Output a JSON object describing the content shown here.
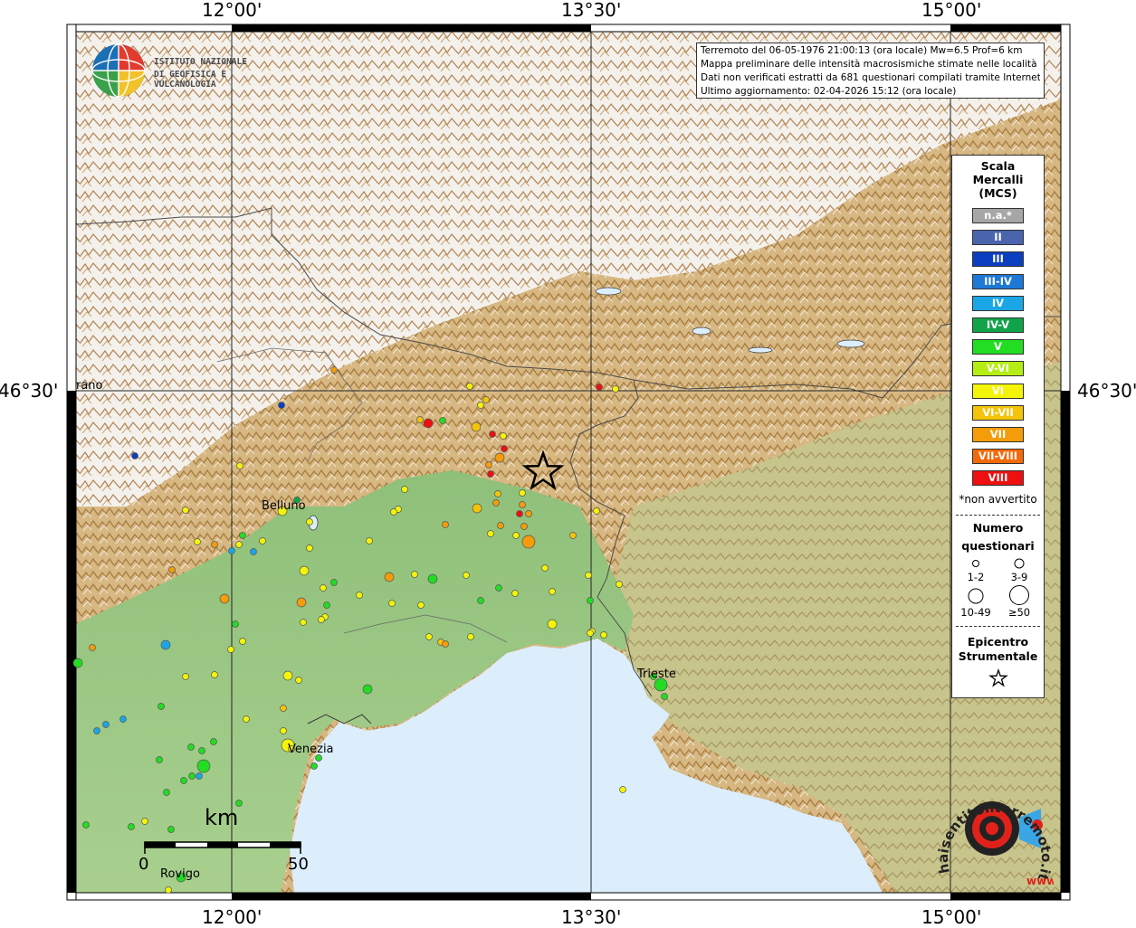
{
  "map": {
    "lon_labels": [
      "12°00'",
      "13°30'",
      "15°00'"
    ],
    "lat_label": "46°30'",
    "places": [
      "Belluno",
      "Trieste",
      "Venezia",
      "Rovigo",
      "rano"
    ],
    "scalebar": {
      "unit": "km",
      "min_label": "0",
      "max_label": "50"
    }
  },
  "info_box": {
    "lines": [
      "Terremoto del 06-05-1976 21:00:13 (ora locale) Mw=6.5 Prof=6 km",
      "Mappa preliminare delle intensità macrosismiche stimate nelle località",
      "Dati non verificati estratti da 681 questionari compilati tramite Internet.",
      "Ultimo aggiornamento: 02-04-2026 15:12 (ora locale)"
    ]
  },
  "logo": {
    "line1": "ISTITUTO NAZIONALE",
    "line2": "DI GEOFISICA E VULCANOLOGIA"
  },
  "legend": {
    "title": [
      "Scala",
      "Mercalli",
      "(MCS)"
    ],
    "classes": [
      {
        "label": "n.a.*",
        "color": "#a6a6a6"
      },
      {
        "label": "II",
        "color": "#4a65ad"
      },
      {
        "label": "III",
        "color": "#0c3fbf"
      },
      {
        "label": "III-IV",
        "color": "#1e78d6"
      },
      {
        "label": "IV",
        "color": "#1aa6e6"
      },
      {
        "label": "IV-V",
        "color": "#11a34a"
      },
      {
        "label": "V",
        "color": "#22dd22"
      },
      {
        "label": "V-VI",
        "color": "#b4ee14"
      },
      {
        "label": "VI",
        "color": "#f4f40a"
      },
      {
        "label": "VI-VII",
        "color": "#f4c40a"
      },
      {
        "label": "VII",
        "color": "#f49c0a"
      },
      {
        "label": "VII-VIII",
        "color": "#f46a0a"
      },
      {
        "label": "VIII",
        "color": "#ee1010"
      }
    ],
    "note": "*non avvertito",
    "count_title": [
      "Numero",
      "questionari"
    ],
    "count_labels": [
      "1-2",
      "3-9",
      "10-49",
      "≥50"
    ],
    "epicenter_title": [
      "Epicentro",
      "Strumentale"
    ]
  },
  "hse_logo": {
    "text": "haisentitoilterremoto.it",
    "sub": "www."
  },
  "observations": {
    "columns": [
      "x",
      "y",
      "size",
      "intensity"
    ],
    "rows": [
      [
        311,
        448,
        1,
        "III"
      ],
      [
        149,
        504,
        1,
        "III"
      ],
      [
        369,
        409,
        1,
        "VII"
      ],
      [
        519,
        427,
        1,
        "VI"
      ],
      [
        537,
        442,
        1,
        "VI-VII"
      ],
      [
        531,
        448,
        1,
        "VI"
      ],
      [
        464,
        464,
        1,
        "VI-VII"
      ],
      [
        473,
        468,
        2,
        "VIII"
      ],
      [
        489,
        465,
        1,
        "V"
      ],
      [
        526,
        472,
        2,
        "VI-VII"
      ],
      [
        544,
        480,
        1,
        "VIII"
      ],
      [
        556,
        482,
        1,
        "VI"
      ],
      [
        557,
        496,
        1,
        "VIII"
      ],
      [
        552,
        506,
        2,
        "VII"
      ],
      [
        540,
        514,
        1,
        "VII"
      ],
      [
        542,
        524,
        1,
        "VIII"
      ],
      [
        550,
        546,
        1,
        "VI-VII"
      ],
      [
        548,
        556,
        1,
        "VII"
      ],
      [
        527,
        562,
        2,
        "VI-VII"
      ],
      [
        577,
        545,
        1,
        "VI"
      ],
      [
        577,
        558,
        1,
        "VII"
      ],
      [
        574,
        568,
        1,
        "VIII"
      ],
      [
        584,
        568,
        1,
        "VII"
      ],
      [
        579,
        582,
        1,
        "VII"
      ],
      [
        584,
        599,
        3,
        "VII"
      ],
      [
        553,
        581,
        1,
        "VII"
      ],
      [
        570,
        592,
        1,
        "VI"
      ],
      [
        542,
        590,
        1,
        "VI"
      ],
      [
        492,
        580,
        1,
        "VII"
      ],
      [
        447,
        541,
        1,
        "VI"
      ],
      [
        440,
        563,
        1,
        "VI"
      ],
      [
        435,
        566,
        1,
        "VI"
      ],
      [
        662,
        428,
        1,
        "VIII"
      ],
      [
        680,
        430,
        1,
        "VI"
      ],
      [
        659,
        565,
        1,
        "VI"
      ],
      [
        633,
        592,
        1,
        "VI-VII"
      ],
      [
        602,
        628,
        1,
        "VI"
      ],
      [
        650,
        636,
        1,
        "VI"
      ],
      [
        684,
        646,
        1,
        "VI"
      ],
      [
        610,
        654,
        1,
        "VI"
      ],
      [
        652,
        664,
        1,
        "V"
      ],
      [
        610,
        690,
        2,
        "VI"
      ],
      [
        654,
        698,
        1,
        "VI"
      ],
      [
        667,
        702,
        1,
        "VI"
      ],
      [
        569,
        656,
        1,
        "VI"
      ],
      [
        551,
        650,
        1,
        "V"
      ],
      [
        531,
        664,
        1,
        "V"
      ],
      [
        515,
        636,
        1,
        "VI"
      ],
      [
        478,
        640,
        2,
        "V"
      ],
      [
        458,
        635,
        1,
        "VI"
      ],
      [
        430,
        638,
        2,
        "VII"
      ],
      [
        408,
        598,
        1,
        "VI"
      ],
      [
        397,
        658,
        1,
        "VI"
      ],
      [
        433,
        667,
        1,
        "VI"
      ],
      [
        465,
        669,
        1,
        "VI"
      ],
      [
        474,
        704,
        1,
        "VI"
      ],
      [
        487,
        710,
        1,
        "VI-VII"
      ],
      [
        492,
        712,
        1,
        "VII"
      ],
      [
        520,
        704,
        1,
        "VI"
      ],
      [
        342,
        577,
        1,
        "VI"
      ],
      [
        342,
        606,
        1,
        "VI"
      ],
      [
        336,
        631,
        2,
        "VI"
      ],
      [
        357,
        650,
        1,
        "VI"
      ],
      [
        369,
        644,
        1,
        "V"
      ],
      [
        333,
        666,
        2,
        "VII"
      ],
      [
        361,
        669,
        1,
        "V"
      ],
      [
        359,
        682,
        1,
        "VI"
      ],
      [
        355,
        685,
        1,
        "VI"
      ],
      [
        335,
        688,
        1,
        "VI"
      ],
      [
        312,
        565,
        2,
        "VI"
      ],
      [
        290,
        598,
        1,
        "VI"
      ],
      [
        280,
        610,
        1,
        "IV"
      ],
      [
        268,
        592,
        1,
        "V"
      ],
      [
        264,
        602,
        1,
        "VI"
      ],
      [
        237,
        602,
        1,
        "VII"
      ],
      [
        256,
        609,
        1,
        "IV"
      ],
      [
        218,
        599,
        1,
        "VI"
      ],
      [
        205,
        564,
        1,
        "VI"
      ],
      [
        265,
        515,
        1,
        "VI"
      ],
      [
        190,
        630,
        1,
        "VII"
      ],
      [
        248,
        662,
        2,
        "VII"
      ],
      [
        260,
        690,
        1,
        "V"
      ],
      [
        268,
        709,
        1,
        "VI"
      ],
      [
        255,
        718,
        1,
        "VI"
      ],
      [
        183,
        713,
        2,
        "IV"
      ],
      [
        102,
        716,
        1,
        "VII"
      ],
      [
        86,
        733,
        2,
        "V"
      ],
      [
        205,
        748,
        1,
        "VI"
      ],
      [
        237,
        746,
        1,
        "VI"
      ],
      [
        318,
        747,
        2,
        "VI"
      ],
      [
        330,
        752,
        1,
        "VI"
      ],
      [
        406,
        762,
        2,
        "V"
      ],
      [
        178,
        781,
        1,
        "V"
      ],
      [
        136,
        795,
        1,
        "IV"
      ],
      [
        117,
        801,
        1,
        "IV"
      ],
      [
        107,
        808,
        1,
        "IV"
      ],
      [
        313,
        783,
        1,
        "VI-VII"
      ],
      [
        272,
        795,
        1,
        "VI"
      ],
      [
        313,
        808,
        1,
        "VI"
      ],
      [
        211,
        826,
        1,
        "V"
      ],
      [
        223,
        830,
        1,
        "V"
      ],
      [
        236,
        820,
        1,
        "V"
      ],
      [
        225,
        847,
        3,
        "V"
      ],
      [
        212,
        858,
        1,
        "V"
      ],
      [
        220,
        858,
        1,
        "IV"
      ],
      [
        203,
        863,
        1,
        "V"
      ],
      [
        184,
        876,
        1,
        "V"
      ],
      [
        176,
        840,
        1,
        "V"
      ],
      [
        318,
        824,
        3,
        "VI"
      ],
      [
        322,
        828,
        1,
        "VI"
      ],
      [
        347,
        847,
        1,
        "V"
      ],
      [
        352,
        838,
        1,
        "V"
      ],
      [
        95,
        912,
        1,
        "V"
      ],
      [
        145,
        914,
        1,
        "V"
      ],
      [
        160,
        908,
        1,
        "VI"
      ],
      [
        189,
        917,
        1,
        "V"
      ],
      [
        264,
        888,
        1,
        "V"
      ],
      [
        200,
        970,
        2,
        "V"
      ],
      [
        186,
        984,
        1,
        "VI"
      ],
      [
        730,
        757,
        3,
        "V"
      ],
      [
        722,
        748,
        1,
        "V"
      ],
      [
        734,
        770,
        1,
        "V"
      ],
      [
        652,
        700,
        1,
        "VI"
      ],
      [
        328,
        553,
        1,
        "IV-V"
      ],
      [
        688,
        873,
        1,
        "VI"
      ]
    ]
  },
  "epicenter": {
    "x": 600,
    "y": 522
  }
}
